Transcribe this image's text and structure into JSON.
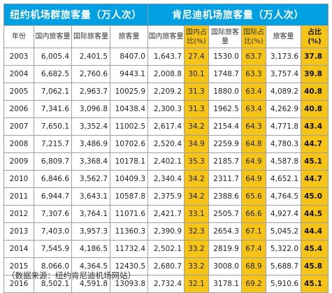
{
  "table": {
    "group_headers": {
      "ny_group": "纽约机场群旅客量（万人次）",
      "jfk_group": "肯尼迪机场旅客量（万人次）"
    },
    "columns": [
      "年份",
      "国内旅客量",
      "国际旅客量",
      "旅客量",
      "国内旅客量",
      "国内占比(%)",
      "国际旅客量",
      "国际占比(%)",
      "旅客量",
      "占比(%)"
    ],
    "rows": [
      [
        "2003",
        "6,005.4",
        "2,401.5",
        "8407.0",
        "1,643.7",
        "27.4",
        "1530.0",
        "63.7",
        "3,173.6",
        "37.8"
      ],
      [
        "2004",
        "6,682.5",
        "2,760.6",
        "9443.1",
        "2,008.8",
        "30.1",
        "1748.7",
        "63.3",
        "3,757.4",
        "39.8"
      ],
      [
        "2005",
        "7,062.1",
        "2,963.7",
        "10025.9",
        "2,209.2",
        "31.3",
        "1880.0",
        "63.4",
        "4,089.2",
        "40.8"
      ],
      [
        "2006",
        "7,341.6",
        "3,096.8",
        "10438.4",
        "2,300.3",
        "31.3",
        "1962.5",
        "63.4",
        "4,262.9",
        "40.8"
      ],
      [
        "2007",
        "7,650.1",
        "3,352.4",
        "11002.5",
        "2,617.4",
        "34.2",
        "2154.4",
        "64.3",
        "4,771.8",
        "43.4"
      ],
      [
        "2008",
        "7,215.7",
        "3,486.9",
        "10702.6",
        "2,520.4",
        "34.9",
        "2259.9",
        "64.8",
        "4,780.3",
        "44.7"
      ],
      [
        "2009",
        "6,809.7",
        "3,368.4",
        "10178.1",
        "2,402.1",
        "35.3",
        "2185.7",
        "64.9",
        "4,587.8",
        "45.1"
      ],
      [
        "2010",
        "6,846.6",
        "3,562.7",
        "10409.3",
        "2,340.4",
        "34.2",
        "2311.7",
        "64.9",
        "4,652.1",
        "44.7"
      ],
      [
        "2011",
        "6,944.7",
        "3,643.1",
        "10587.8",
        "2,375.9",
        "34.2",
        "2388.6",
        "65.6",
        "4,764.5",
        "45.0"
      ],
      [
        "2012",
        "7,307.6",
        "3,764.1",
        "11071.6",
        "2,421.7",
        "33.1",
        "2505.7",
        "66.6",
        "4,927.4",
        "44.5"
      ],
      [
        "2013",
        "7,403.0",
        "3,957.3",
        "11360.3",
        "2,390.9",
        "32.3",
        "2654.3",
        "67.1",
        "5,045.2",
        "44.4"
      ],
      [
        "2014",
        "7,545.9",
        "4,186.5",
        "11732.4",
        "2,502.1",
        "33.2",
        "2819.9",
        "67.4",
        "5,322.0",
        "45.4"
      ],
      [
        "2015",
        "8,066.0",
        "4,364.5",
        "12430.5",
        "2,680.7",
        "33.2",
        "3008.0",
        "68.9",
        "5,688.7",
        "45.8"
      ],
      [
        "2016",
        "8,502.1",
        "4,591.8",
        "13093.8",
        "2,732.4",
        "32.1",
        "3178.1",
        "69.2",
        "5,910.6",
        "45.1"
      ]
    ]
  },
  "source_note": "（数据来源：纽约肯尼迪机场网站）",
  "colors": {
    "group_header_bg": "#00a0e3",
    "highlight_bg": "#f5c417",
    "border": "#9e9e9e"
  }
}
